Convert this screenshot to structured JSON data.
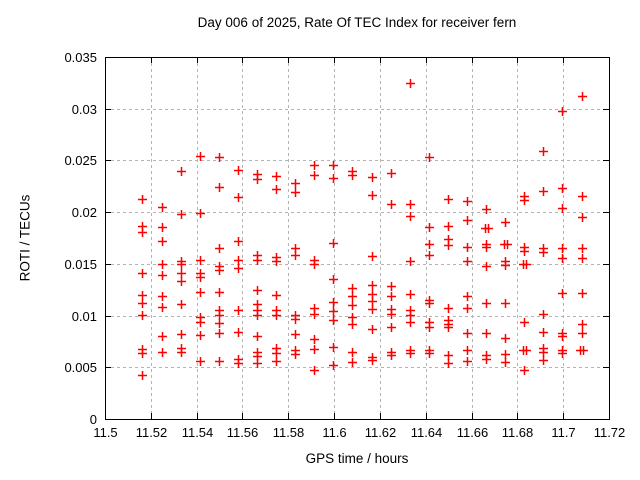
{
  "chart_data": {
    "type": "scatter",
    "title": "Day 006 of 2025, Rate Of TEC Index for receiver fern",
    "xlabel": "GPS time / hours",
    "ylabel": "ROTI / TECUs",
    "xlim": [
      11.5,
      11.72
    ],
    "ylim": [
      0,
      0.035
    ],
    "xticks": [
      {
        "v": 11.5,
        "label": "11.5"
      },
      {
        "v": 11.52,
        "label": "11.52"
      },
      {
        "v": 11.54,
        "label": "11.54"
      },
      {
        "v": 11.56,
        "label": "11.56"
      },
      {
        "v": 11.58,
        "label": "11.58"
      },
      {
        "v": 11.6,
        "label": "11.6"
      },
      {
        "v": 11.62,
        "label": "11.62"
      },
      {
        "v": 11.64,
        "label": "11.64"
      },
      {
        "v": 11.66,
        "label": "11.66"
      },
      {
        "v": 11.68,
        "label": "11.68"
      },
      {
        "v": 11.7,
        "label": "11.7"
      },
      {
        "v": 11.72,
        "label": "11.72"
      }
    ],
    "yticks": [
      {
        "v": 0,
        "label": "0"
      },
      {
        "v": 0.005,
        "label": "0.005"
      },
      {
        "v": 0.01,
        "label": "0.01"
      },
      {
        "v": 0.015,
        "label": "0.015"
      },
      {
        "v": 0.02,
        "label": "0.02"
      },
      {
        "v": 0.025,
        "label": "0.025"
      },
      {
        "v": 0.03,
        "label": "0.03"
      },
      {
        "v": 0.035,
        "label": "0.035"
      }
    ],
    "grid": true,
    "legend_position": "none",
    "marker": {
      "shape": "plus",
      "color": "#ff0000",
      "size": 9
    },
    "grid_color": "#b3b3b3",
    "border_color": "#000000",
    "series": [
      {
        "name": "ROTI",
        "points": [
          [
            11.5163,
            0.0213
          ],
          [
            11.5163,
            0.0187
          ],
          [
            11.5163,
            0.0181
          ],
          [
            11.5163,
            0.0141
          ],
          [
            11.5163,
            0.012
          ],
          [
            11.5163,
            0.0112
          ],
          [
            11.5163,
            0.0101
          ],
          [
            11.5163,
            0.0068
          ],
          [
            11.5163,
            0.0064
          ],
          [
            11.5163,
            0.0043
          ],
          [
            11.5247,
            0.0205
          ],
          [
            11.5247,
            0.0186
          ],
          [
            11.5247,
            0.0172
          ],
          [
            11.5247,
            0.015
          ],
          [
            11.5247,
            0.0139
          ],
          [
            11.5247,
            0.0119
          ],
          [
            11.5247,
            0.0108
          ],
          [
            11.5247,
            0.008
          ],
          [
            11.5247,
            0.0065
          ],
          [
            11.533,
            0.024
          ],
          [
            11.533,
            0.0198
          ],
          [
            11.533,
            0.0153
          ],
          [
            11.533,
            0.015
          ],
          [
            11.533,
            0.0141
          ],
          [
            11.533,
            0.0133
          ],
          [
            11.533,
            0.0111
          ],
          [
            11.533,
            0.0082
          ],
          [
            11.533,
            0.0069
          ],
          [
            11.533,
            0.0065
          ],
          [
            11.5414,
            0.0254
          ],
          [
            11.5414,
            0.0199
          ],
          [
            11.5414,
            0.0154
          ],
          [
            11.5414,
            0.0141
          ],
          [
            11.5414,
            0.0137
          ],
          [
            11.5414,
            0.0123
          ],
          [
            11.5414,
            0.0099
          ],
          [
            11.5414,
            0.0094
          ],
          [
            11.5414,
            0.0081
          ],
          [
            11.5414,
            0.0056
          ],
          [
            11.5497,
            0.0253
          ],
          [
            11.5497,
            0.0224
          ],
          [
            11.5497,
            0.0165
          ],
          [
            11.5497,
            0.0148
          ],
          [
            11.5497,
            0.0144
          ],
          [
            11.5497,
            0.0123
          ],
          [
            11.5497,
            0.0105
          ],
          [
            11.5497,
            0.0101
          ],
          [
            11.5497,
            0.0093
          ],
          [
            11.5497,
            0.0083
          ],
          [
            11.5497,
            0.0056
          ],
          [
            11.558,
            0.0241
          ],
          [
            11.558,
            0.0215
          ],
          [
            11.558,
            0.0172
          ],
          [
            11.558,
            0.0154
          ],
          [
            11.558,
            0.0146
          ],
          [
            11.558,
            0.0105
          ],
          [
            11.558,
            0.0084
          ],
          [
            11.558,
            0.0058
          ],
          [
            11.558,
            0.0054
          ],
          [
            11.5664,
            0.0237
          ],
          [
            11.5664,
            0.0232
          ],
          [
            11.5664,
            0.0159
          ],
          [
            11.5664,
            0.0154
          ],
          [
            11.5664,
            0.0125
          ],
          [
            11.5664,
            0.0111
          ],
          [
            11.5664,
            0.0105
          ],
          [
            11.5664,
            0.0101
          ],
          [
            11.5664,
            0.008
          ],
          [
            11.5664,
            0.0065
          ],
          [
            11.5664,
            0.0061
          ],
          [
            11.5664,
            0.0054
          ],
          [
            11.5747,
            0.0235
          ],
          [
            11.5747,
            0.0222
          ],
          [
            11.5747,
            0.0157
          ],
          [
            11.5747,
            0.0153
          ],
          [
            11.5747,
            0.012
          ],
          [
            11.5747,
            0.0105
          ],
          [
            11.5747,
            0.0101
          ],
          [
            11.5747,
            0.0069
          ],
          [
            11.5747,
            0.0064
          ],
          [
            11.5747,
            0.0056
          ],
          [
            11.583,
            0.0228
          ],
          [
            11.583,
            0.0219
          ],
          [
            11.583,
            0.0165
          ],
          [
            11.583,
            0.0159
          ],
          [
            11.583,
            0.0101
          ],
          [
            11.583,
            0.0097
          ],
          [
            11.583,
            0.0082
          ],
          [
            11.583,
            0.0067
          ],
          [
            11.583,
            0.0063
          ],
          [
            11.5914,
            0.0246
          ],
          [
            11.5914,
            0.0236
          ],
          [
            11.5914,
            0.0154
          ],
          [
            11.5914,
            0.015
          ],
          [
            11.5914,
            0.0107
          ],
          [
            11.5914,
            0.0102
          ],
          [
            11.5914,
            0.0077
          ],
          [
            11.5914,
            0.0068
          ],
          [
            11.5914,
            0.0047
          ],
          [
            11.5997,
            0.0246
          ],
          [
            11.5997,
            0.0233
          ],
          [
            11.5997,
            0.017
          ],
          [
            11.5997,
            0.0135
          ],
          [
            11.5997,
            0.0113
          ],
          [
            11.5997,
            0.0104
          ],
          [
            11.5997,
            0.0096
          ],
          [
            11.5997,
            0.007
          ],
          [
            11.5997,
            0.0052
          ],
          [
            11.608,
            0.024
          ],
          [
            11.608,
            0.0236
          ],
          [
            11.608,
            0.0127
          ],
          [
            11.608,
            0.0119
          ],
          [
            11.608,
            0.011
          ],
          [
            11.608,
            0.0099
          ],
          [
            11.608,
            0.0092
          ],
          [
            11.608,
            0.0065
          ],
          [
            11.608,
            0.0055
          ],
          [
            11.6164,
            0.0234
          ],
          [
            11.6164,
            0.0217
          ],
          [
            11.6164,
            0.0158
          ],
          [
            11.6164,
            0.013
          ],
          [
            11.6164,
            0.0121
          ],
          [
            11.6164,
            0.0114
          ],
          [
            11.6164,
            0.0106
          ],
          [
            11.6164,
            0.0087
          ],
          [
            11.6164,
            0.006
          ],
          [
            11.6164,
            0.0057
          ],
          [
            11.6247,
            0.0238
          ],
          [
            11.6247,
            0.0208
          ],
          [
            11.6247,
            0.0129
          ],
          [
            11.6247,
            0.0119
          ],
          [
            11.6247,
            0.0106
          ],
          [
            11.6247,
            0.0102
          ],
          [
            11.6247,
            0.0089
          ],
          [
            11.6247,
            0.0065
          ],
          [
            11.6247,
            0.0062
          ],
          [
            11.633,
            0.0325
          ],
          [
            11.633,
            0.0208
          ],
          [
            11.633,
            0.0196
          ],
          [
            11.633,
            0.0153
          ],
          [
            11.633,
            0.0121
          ],
          [
            11.633,
            0.0105
          ],
          [
            11.633,
            0.0101
          ],
          [
            11.633,
            0.0094
          ],
          [
            11.633,
            0.0067
          ],
          [
            11.633,
            0.0064
          ],
          [
            11.6414,
            0.0253
          ],
          [
            11.6414,
            0.0186
          ],
          [
            11.6414,
            0.0169
          ],
          [
            11.6414,
            0.0159
          ],
          [
            11.6414,
            0.0115
          ],
          [
            11.6414,
            0.0112
          ],
          [
            11.6414,
            0.0094
          ],
          [
            11.6414,
            0.0089
          ],
          [
            11.6414,
            0.0067
          ],
          [
            11.6414,
            0.0064
          ],
          [
            11.6497,
            0.0213
          ],
          [
            11.6497,
            0.0187
          ],
          [
            11.6497,
            0.0174
          ],
          [
            11.6497,
            0.0168
          ],
          [
            11.6497,
            0.0107
          ],
          [
            11.6497,
            0.0096
          ],
          [
            11.6497,
            0.0092
          ],
          [
            11.6497,
            0.0089
          ],
          [
            11.6497,
            0.0062
          ],
          [
            11.6497,
            0.0054
          ],
          [
            11.658,
            0.0211
          ],
          [
            11.658,
            0.0192
          ],
          [
            11.658,
            0.0166
          ],
          [
            11.658,
            0.0153
          ],
          [
            11.658,
            0.0119
          ],
          [
            11.658,
            0.0107
          ],
          [
            11.658,
            0.0083
          ],
          [
            11.658,
            0.0067
          ],
          [
            11.658,
            0.0056
          ],
          [
            11.6664,
            0.0203
          ],
          [
            11.6657,
            0.0185
          ],
          [
            11.6671,
            0.0185
          ],
          [
            11.6664,
            0.0169
          ],
          [
            11.6664,
            0.0166
          ],
          [
            11.6664,
            0.0148
          ],
          [
            11.6664,
            0.0112
          ],
          [
            11.6664,
            0.0083
          ],
          [
            11.6664,
            0.0062
          ],
          [
            11.6664,
            0.0058
          ],
          [
            11.6747,
            0.019
          ],
          [
            11.6741,
            0.0169
          ],
          [
            11.6753,
            0.0169
          ],
          [
            11.6747,
            0.0153
          ],
          [
            11.6747,
            0.0149
          ],
          [
            11.6747,
            0.0112
          ],
          [
            11.6747,
            0.0078
          ],
          [
            11.6747,
            0.0063
          ],
          [
            11.6747,
            0.0055
          ],
          [
            11.683,
            0.0216
          ],
          [
            11.683,
            0.0212
          ],
          [
            11.683,
            0.0166
          ],
          [
            11.683,
            0.0162
          ],
          [
            11.6824,
            0.015
          ],
          [
            11.6836,
            0.015
          ],
          [
            11.683,
            0.0094
          ],
          [
            11.6824,
            0.0067
          ],
          [
            11.6836,
            0.0067
          ],
          [
            11.683,
            0.0047
          ],
          [
            11.6914,
            0.0259
          ],
          [
            11.6914,
            0.022
          ],
          [
            11.6914,
            0.0165
          ],
          [
            11.6914,
            0.0161
          ],
          [
            11.6914,
            0.0102
          ],
          [
            11.6914,
            0.0084
          ],
          [
            11.6914,
            0.0069
          ],
          [
            11.6914,
            0.0065
          ],
          [
            11.6914,
            0.0057
          ],
          [
            11.6997,
            0.0298
          ],
          [
            11.6997,
            0.0223
          ],
          [
            11.6997,
            0.0204
          ],
          [
            11.6997,
            0.0165
          ],
          [
            11.6997,
            0.0156
          ],
          [
            11.6997,
            0.0122
          ],
          [
            11.6997,
            0.0083
          ],
          [
            11.6997,
            0.008
          ],
          [
            11.6997,
            0.0067
          ],
          [
            11.6997,
            0.0064
          ],
          [
            11.708,
            0.0312
          ],
          [
            11.708,
            0.0216
          ],
          [
            11.708,
            0.0195
          ],
          [
            11.708,
            0.0165
          ],
          [
            11.708,
            0.0156
          ],
          [
            11.708,
            0.0122
          ],
          [
            11.708,
            0.0092
          ],
          [
            11.708,
            0.0083
          ],
          [
            11.7074,
            0.0067
          ],
          [
            11.7086,
            0.0067
          ]
        ]
      }
    ]
  }
}
